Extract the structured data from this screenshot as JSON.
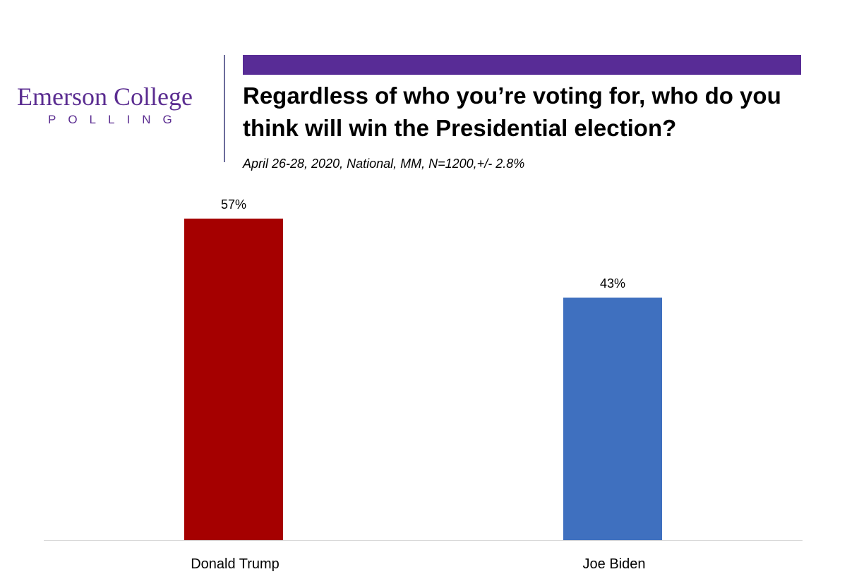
{
  "logo": {
    "line1": "Emerson College",
    "line2": "POLLING"
  },
  "header": {
    "accent": "#582c96"
  },
  "chart_data": {
    "type": "bar",
    "title": "Regardless of who you’re voting for, who do you think will win the Presidential election?",
    "subtitle": "April 26-28, 2020, National, MM,  N=1200,+/-  2.8%",
    "categories": [
      "Donald Trump",
      "Joe Biden"
    ],
    "values": [
      57,
      43
    ],
    "value_labels": [
      "57%",
      "43%"
    ],
    "colors": [
      "#a50000",
      "#3f70bf"
    ],
    "ylim": [
      0,
      100
    ],
    "xlabel": "",
    "ylabel": "",
    "grid": false
  }
}
